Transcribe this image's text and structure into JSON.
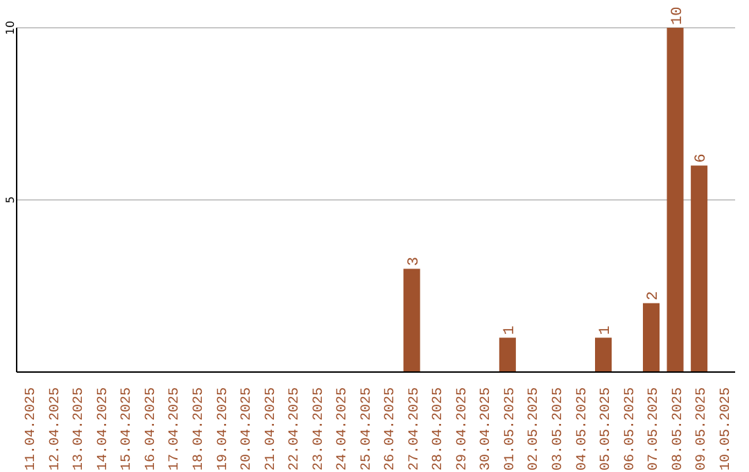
{
  "chart_data": {
    "type": "bar",
    "categories": [
      "11.04.2025",
      "12.04.2025",
      "13.04.2025",
      "14.04.2025",
      "15.04.2025",
      "16.04.2025",
      "17.04.2025",
      "18.04.2025",
      "19.04.2025",
      "20.04.2025",
      "21.04.2025",
      "22.04.2025",
      "23.04.2025",
      "24.04.2025",
      "25.04.2025",
      "26.04.2025",
      "27.04.2025",
      "28.04.2025",
      "29.04.2025",
      "30.04.2025",
      "01.05.2025",
      "02.05.2025",
      "03.05.2025",
      "04.05.2025",
      "05.05.2025",
      "06.05.2025",
      "07.05.2025",
      "08.05.2025",
      "09.05.2025",
      "10.05.2025"
    ],
    "values": [
      0,
      0,
      0,
      0,
      0,
      0,
      0,
      0,
      0,
      0,
      0,
      0,
      0,
      0,
      0,
      0,
      3,
      0,
      0,
      0,
      1,
      0,
      0,
      0,
      1,
      0,
      2,
      10,
      6,
      0
    ],
    "value_labels": [
      null,
      null,
      null,
      null,
      null,
      null,
      null,
      null,
      null,
      null,
      null,
      null,
      null,
      null,
      null,
      null,
      "3",
      null,
      null,
      null,
      "1",
      null,
      null,
      null,
      "1",
      null,
      "2",
      "10",
      "6",
      null
    ],
    "color": "#a0522d",
    "ylim": [
      0,
      10
    ],
    "yticks": [
      5,
      10
    ],
    "grid": "y"
  }
}
